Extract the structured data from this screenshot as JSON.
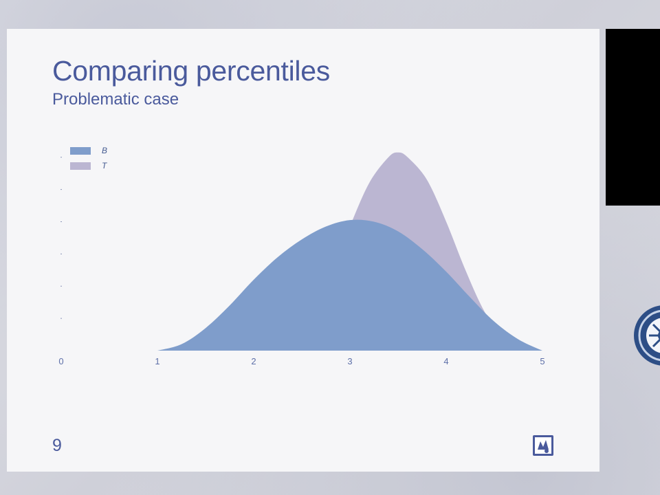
{
  "slide": {
    "title": "Comparing percentiles",
    "subtitle": "Problematic case",
    "page_number": "9"
  },
  "colors": {
    "title_text": "#4a5a9c",
    "series_B": "#7f9dcb",
    "series_T": "#bbb6d2",
    "slide_background": "#f6f6f8"
  },
  "icons": {
    "footer_logo": "logo-badge-icon",
    "side_emblem": "seal-icon"
  },
  "chart_data": {
    "type": "area",
    "xlim": [
      0,
      5
    ],
    "ylim": [
      0,
      1.25
    ],
    "x_tick_labels": [
      "0",
      "1",
      "2",
      "3",
      "4",
      "5"
    ],
    "legend_position": "top-left",
    "grid": false,
    "series": [
      {
        "name": "B",
        "x": [
          1,
          1.25,
          1.5,
          1.75,
          2,
          2.25,
          2.5,
          2.75,
          3,
          3.25,
          3.5,
          3.75,
          4,
          4.25,
          4.5,
          4.75,
          5
        ],
        "y": [
          0,
          0.04,
          0.14,
          0.28,
          0.44,
          0.58,
          0.69,
          0.77,
          0.81,
          0.8,
          0.74,
          0.63,
          0.49,
          0.33,
          0.18,
          0.07,
          0
        ]
      },
      {
        "name": "T",
        "x": [
          2.2,
          2.4,
          2.6,
          2.8,
          3,
          3.2,
          3.4,
          3.5,
          3.6,
          3.8,
          4,
          4.2,
          4.4,
          4.6,
          4.8,
          5
        ],
        "y": [
          0,
          0.06,
          0.22,
          0.46,
          0.77,
          1.04,
          1.2,
          1.23,
          1.2,
          1.06,
          0.8,
          0.5,
          0.24,
          0.08,
          0.02,
          0
        ]
      }
    ]
  }
}
